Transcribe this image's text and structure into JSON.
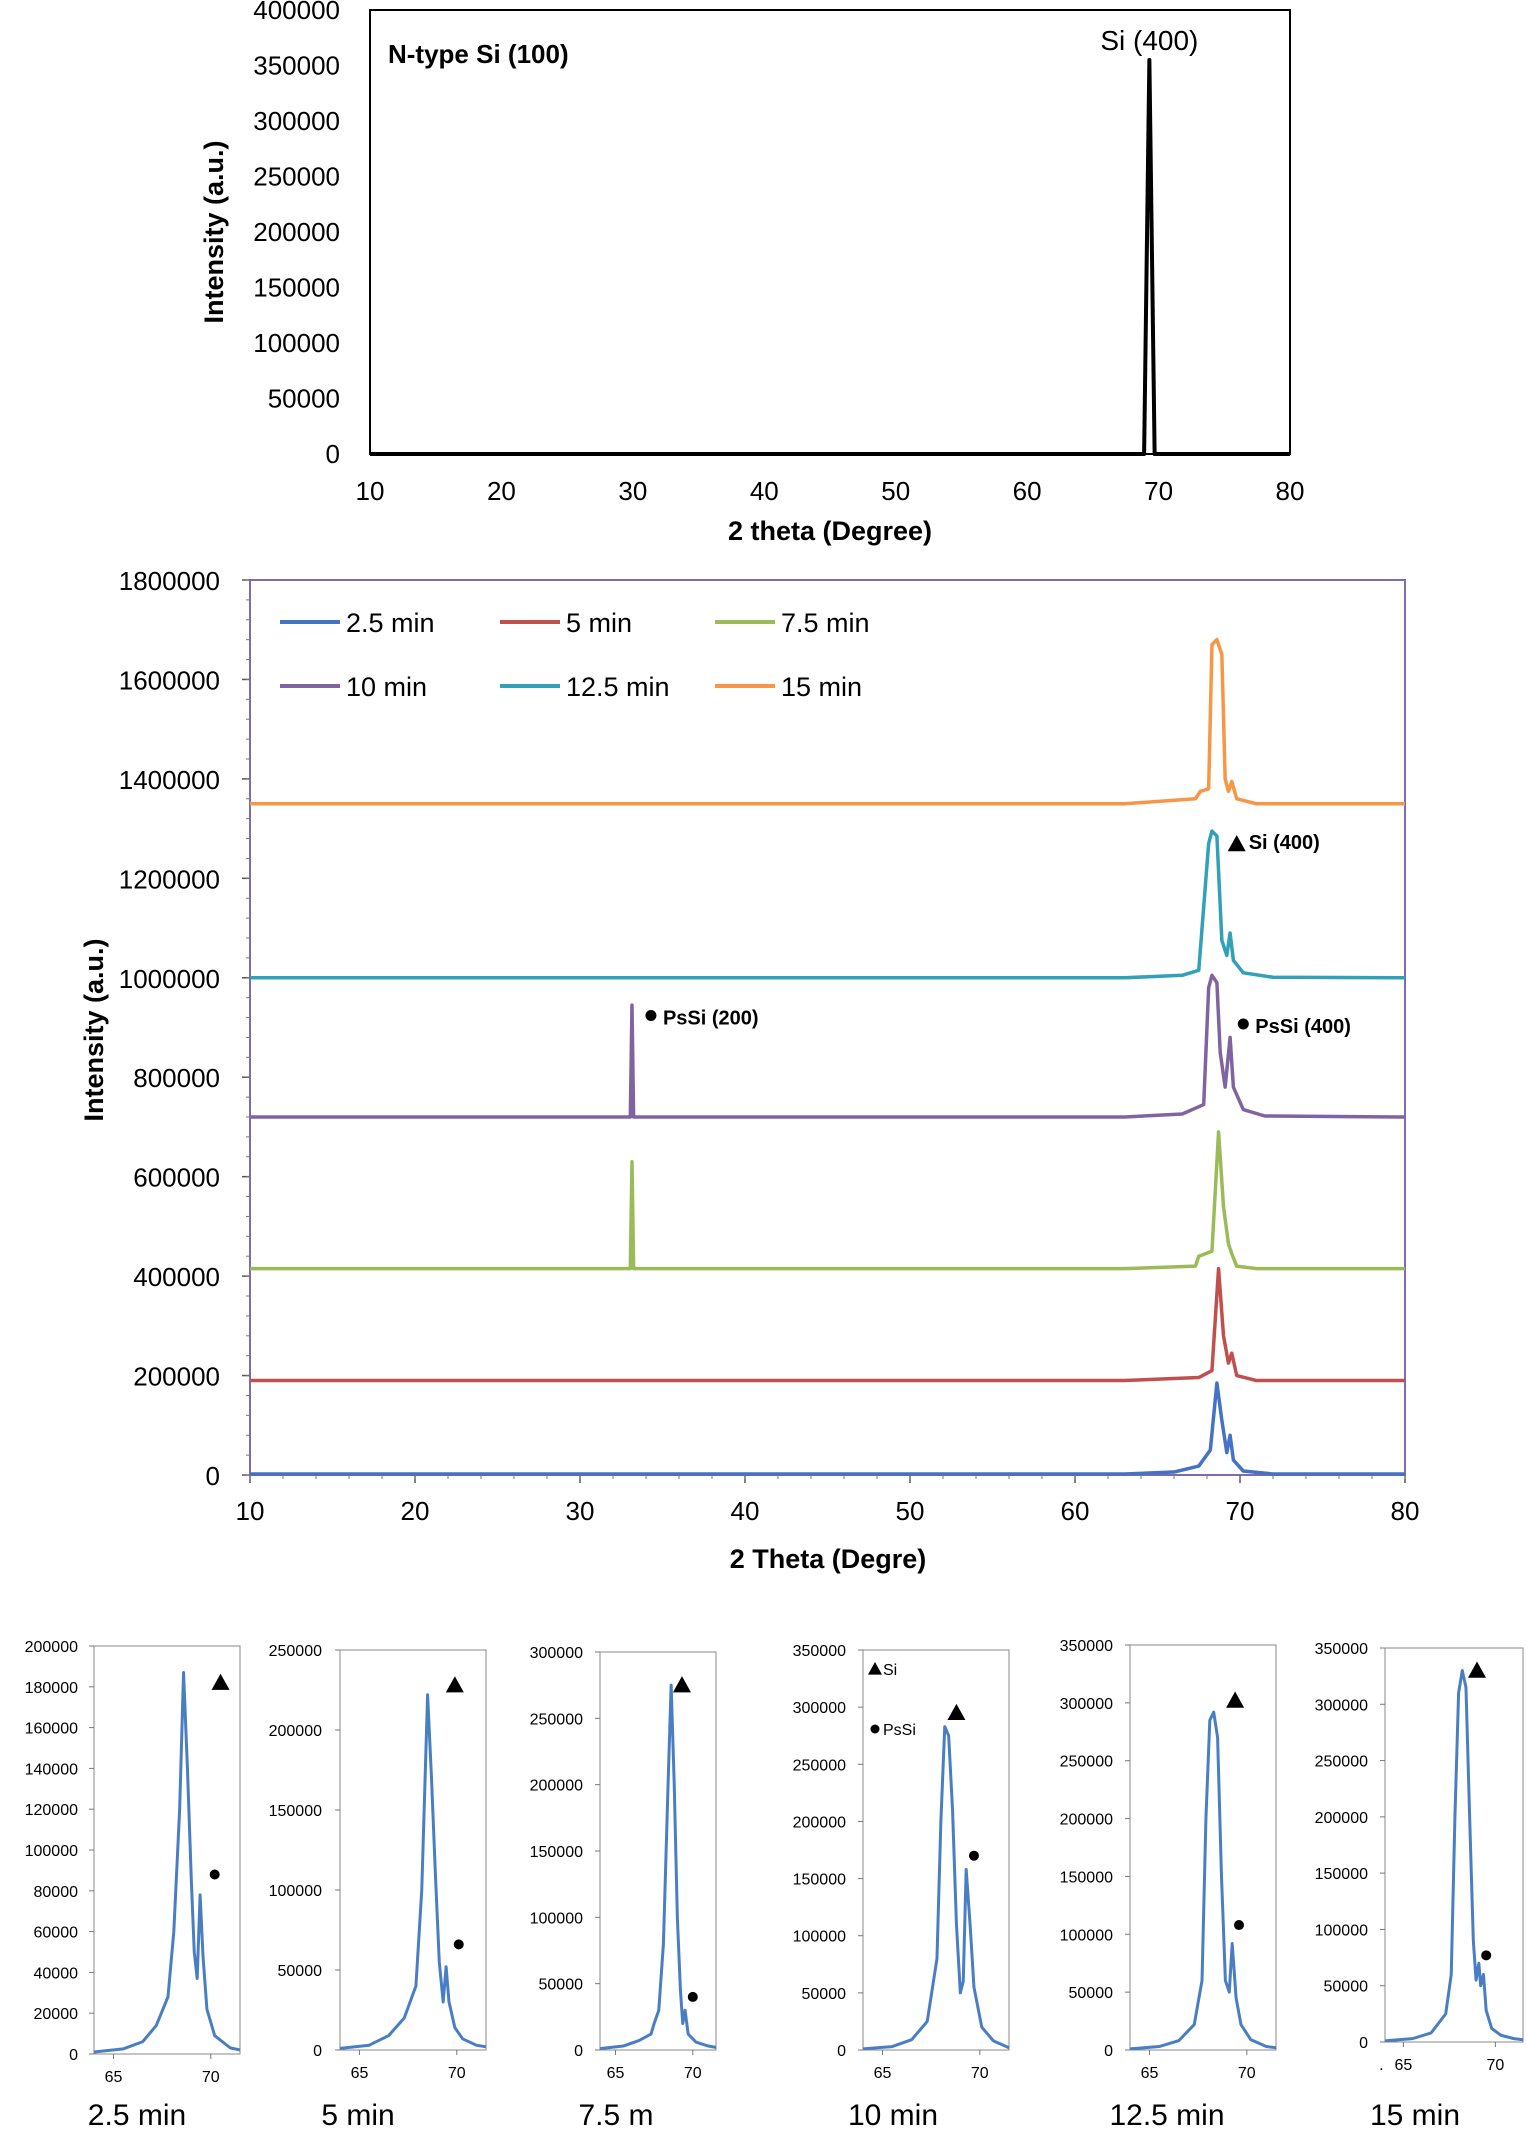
{
  "chart_data": [
    {
      "id": "top",
      "type": "line",
      "title": "N-type Si (100)",
      "xlabel": "2 theta (Degree)",
      "ylabel": "Intensity (a.u.)",
      "xlim": [
        10,
        80
      ],
      "ylim": [
        0,
        400000
      ],
      "xticks": [
        10,
        20,
        30,
        40,
        50,
        60,
        70,
        80
      ],
      "yticks": [
        0,
        50000,
        100000,
        150000,
        200000,
        250000,
        300000,
        350000,
        400000
      ],
      "series": [
        {
          "name": "N-type Si (100)",
          "color": "#000000",
          "points": [
            [
              10,
              0
            ],
            [
              68.9,
              0
            ],
            [
              69.3,
              355000
            ],
            [
              69.7,
              0
            ],
            [
              80,
              0
            ]
          ]
        }
      ],
      "annotations": [
        {
          "text": "Si (400)",
          "x": 69.3,
          "y": 375000
        }
      ]
    },
    {
      "id": "middle",
      "type": "line",
      "title": "",
      "xlabel": "2 Theta (Degre)",
      "ylabel": "Intensity (a.u.)",
      "xlim": [
        10,
        80
      ],
      "ylim": [
        0,
        1800000
      ],
      "xticks": [
        10,
        20,
        30,
        40,
        50,
        60,
        70,
        80
      ],
      "yticks": [
        0,
        200000,
        400000,
        600000,
        800000,
        1000000,
        1200000,
        1400000,
        1600000,
        1800000
      ],
      "legend": {
        "placement": "top-left",
        "columns": 3
      },
      "series": [
        {
          "name": "2.5 min",
          "color": "#4472C4",
          "points": [
            [
              10,
              2000
            ],
            [
              63,
              2000
            ],
            [
              66,
              6000
            ],
            [
              67.5,
              18000
            ],
            [
              68.2,
              50000
            ],
            [
              68.6,
              185000
            ],
            [
              68.9,
              110000
            ],
            [
              69.2,
              45000
            ],
            [
              69.4,
              80000
            ],
            [
              69.6,
              30000
            ],
            [
              70.2,
              8000
            ],
            [
              72,
              2000
            ],
            [
              80,
              2000
            ]
          ]
        },
        {
          "name": "5 min",
          "color": "#C0504D",
          "points": [
            [
              10,
              190000
            ],
            [
              63,
              190000
            ],
            [
              67.5,
              196000
            ],
            [
              68.3,
              210000
            ],
            [
              68.7,
              415000
            ],
            [
              69.0,
              280000
            ],
            [
              69.3,
              225000
            ],
            [
              69.5,
              245000
            ],
            [
              69.8,
              200000
            ],
            [
              71,
              190000
            ],
            [
              80,
              190000
            ]
          ]
        },
        {
          "name": "7.5 min",
          "color": "#9BBB59",
          "points": [
            [
              10,
              415000
            ],
            [
              33.05,
              415000
            ],
            [
              33.15,
              630000
            ],
            [
              33.25,
              415000
            ],
            [
              63,
              415000
            ],
            [
              67.3,
              420000
            ],
            [
              67.5,
              440000
            ],
            [
              68.3,
              450000
            ],
            [
              68.7,
              690000
            ],
            [
              69.0,
              540000
            ],
            [
              69.3,
              465000
            ],
            [
              69.5,
              445000
            ],
            [
              69.8,
              420000
            ],
            [
              71,
              415000
            ],
            [
              80,
              415000
            ]
          ]
        },
        {
          "name": "10 min",
          "color": "#8064A2",
          "points": [
            [
              10,
              720000
            ],
            [
              33.05,
              720000
            ],
            [
              33.15,
              945000
            ],
            [
              33.25,
              720000
            ],
            [
              63,
              720000
            ],
            [
              66.5,
              726000
            ],
            [
              67.8,
              745000
            ],
            [
              68.1,
              980000
            ],
            [
              68.3,
              1005000
            ],
            [
              68.6,
              990000
            ],
            [
              68.8,
              850000
            ],
            [
              69.1,
              780000
            ],
            [
              69.4,
              880000
            ],
            [
              69.6,
              780000
            ],
            [
              70.2,
              735000
            ],
            [
              71.5,
              722000
            ],
            [
              80,
              720000
            ]
          ]
        },
        {
          "name": "12.5 min",
          "color": "#31A0B8",
          "points": [
            [
              10,
              1000000
            ],
            [
              63,
              1000000
            ],
            [
              66.5,
              1005000
            ],
            [
              67.5,
              1015000
            ],
            [
              68.1,
              1270000
            ],
            [
              68.3,
              1295000
            ],
            [
              68.6,
              1285000
            ],
            [
              68.9,
              1075000
            ],
            [
              69.2,
              1045000
            ],
            [
              69.4,
              1090000
            ],
            [
              69.6,
              1035000
            ],
            [
              70.2,
              1010000
            ],
            [
              72,
              1001000
            ],
            [
              80,
              1000000
            ]
          ]
        },
        {
          "name": "15 min",
          "color": "#F79646",
          "points": [
            [
              10,
              1350000
            ],
            [
              63,
              1350000
            ],
            [
              67.3,
              1360000
            ],
            [
              67.6,
              1375000
            ],
            [
              68.1,
              1380000
            ],
            [
              68.3,
              1670000
            ],
            [
              68.6,
              1680000
            ],
            [
              68.9,
              1650000
            ],
            [
              69.1,
              1400000
            ],
            [
              69.3,
              1375000
            ],
            [
              69.5,
              1395000
            ],
            [
              69.8,
              1360000
            ],
            [
              71,
              1350000
            ],
            [
              80,
              1350000
            ]
          ]
        }
      ],
      "annotations": [
        {
          "marker": "triangle",
          "text": "Si (400)",
          "x": 69.8,
          "y": 1265000
        },
        {
          "marker": "circle",
          "text": "PsSi (200)",
          "x": 34.3,
          "y": 912000
        },
        {
          "marker": "circle",
          "text": "PsSi (400)",
          "x": 70.2,
          "y": 895000
        }
      ]
    },
    {
      "id": "inset-1",
      "type": "line",
      "caption": "2.5 min",
      "xlim": [
        64,
        71.5
      ],
      "xticks": [
        65,
        70
      ],
      "ylim": [
        0,
        200000
      ],
      "yticks": [
        0,
        20000,
        40000,
        60000,
        80000,
        100000,
        120000,
        140000,
        160000,
        180000,
        200000
      ],
      "color": "#4A7EC2",
      "points": [
        [
          64,
          1000
        ],
        [
          65.5,
          2500
        ],
        [
          66.5,
          6000
        ],
        [
          67.2,
          14000
        ],
        [
          67.8,
          28000
        ],
        [
          68.1,
          60000
        ],
        [
          68.4,
          120000
        ],
        [
          68.6,
          187000
        ],
        [
          68.8,
          140000
        ],
        [
          69.0,
          85000
        ],
        [
          69.15,
          50000
        ],
        [
          69.3,
          37000
        ],
        [
          69.45,
          78000
        ],
        [
          69.6,
          48000
        ],
        [
          69.8,
          22000
        ],
        [
          70.2,
          9000
        ],
        [
          71,
          3000
        ],
        [
          71.5,
          2000
        ]
      ],
      "markers": [
        {
          "type": "triangle",
          "x": 70.5,
          "y": 182000
        },
        {
          "type": "circle",
          "x": 70.2,
          "y": 88000
        }
      ]
    },
    {
      "id": "inset-2",
      "type": "line",
      "caption": "5 min",
      "xlim": [
        64,
        71.5
      ],
      "xticks": [
        65,
        70
      ],
      "ylim": [
        0,
        250000
      ],
      "yticks": [
        0,
        50000,
        100000,
        150000,
        200000,
        250000
      ],
      "color": "#4A7EC2",
      "points": [
        [
          64,
          1000
        ],
        [
          65.5,
          3000
        ],
        [
          66.5,
          9000
        ],
        [
          67.3,
          20000
        ],
        [
          67.9,
          40000
        ],
        [
          68.2,
          100000
        ],
        [
          68.5,
          222000
        ],
        [
          68.7,
          170000
        ],
        [
          68.9,
          110000
        ],
        [
          69.1,
          55000
        ],
        [
          69.3,
          30000
        ],
        [
          69.45,
          52000
        ],
        [
          69.6,
          30000
        ],
        [
          69.9,
          14000
        ],
        [
          70.3,
          7000
        ],
        [
          71,
          3000
        ],
        [
          71.5,
          2000
        ]
      ],
      "markers": [
        {
          "type": "triangle",
          "x": 69.9,
          "y": 228000
        },
        {
          "type": "circle",
          "x": 70.1,
          "y": 66000
        }
      ]
    },
    {
      "id": "inset-3",
      "type": "line",
      "caption": "7.5 m",
      "xlim": [
        64,
        71.5
      ],
      "xticks": [
        65,
        70
      ],
      "ylim": [
        0,
        300000
      ],
      "yticks": [
        0,
        50000,
        100000,
        150000,
        200000,
        250000,
        300000
      ],
      "color": "#4A7EC2",
      "points": [
        [
          64,
          1000
        ],
        [
          65.5,
          3000
        ],
        [
          66.5,
          7000
        ],
        [
          67.3,
          12000
        ],
        [
          67.5,
          20000
        ],
        [
          67.8,
          30000
        ],
        [
          68.1,
          80000
        ],
        [
          68.4,
          200000
        ],
        [
          68.6,
          275000
        ],
        [
          68.8,
          200000
        ],
        [
          69.0,
          100000
        ],
        [
          69.2,
          45000
        ],
        [
          69.35,
          20000
        ],
        [
          69.5,
          30000
        ],
        [
          69.7,
          12000
        ],
        [
          70.2,
          6000
        ],
        [
          71,
          3000
        ],
        [
          71.5,
          2000
        ]
      ],
      "markers": [
        {
          "type": "triangle",
          "x": 69.3,
          "y": 275000
        },
        {
          "type": "circle",
          "x": 70.0,
          "y": 40000
        }
      ]
    },
    {
      "id": "inset-4",
      "type": "line",
      "caption": "10 min",
      "xlim": [
        64,
        71.5
      ],
      "xticks": [
        65,
        70
      ],
      "ylim": [
        0,
        350000
      ],
      "yticks": [
        0,
        50000,
        100000,
        150000,
        200000,
        250000,
        300000,
        350000
      ],
      "color": "#4A7EC2",
      "points": [
        [
          64,
          1000
        ],
        [
          65.5,
          3000
        ],
        [
          66.5,
          9000
        ],
        [
          67.3,
          25000
        ],
        [
          67.8,
          80000
        ],
        [
          68.0,
          200000
        ],
        [
          68.2,
          283000
        ],
        [
          68.4,
          275000
        ],
        [
          68.6,
          210000
        ],
        [
          68.8,
          110000
        ],
        [
          69.0,
          50000
        ],
        [
          69.15,
          60000
        ],
        [
          69.3,
          158000
        ],
        [
          69.5,
          110000
        ],
        [
          69.7,
          55000
        ],
        [
          70.1,
          20000
        ],
        [
          70.7,
          8000
        ],
        [
          71.5,
          2000
        ]
      ],
      "markers": [
        {
          "type": "triangle",
          "x": 68.8,
          "y": 295000
        },
        {
          "type": "circle",
          "x": 69.7,
          "y": 170000
        }
      ],
      "legend": [
        {
          "marker": "triangle",
          "text": "Si"
        },
        {
          "marker": "circle",
          "text": "PsSi"
        }
      ]
    },
    {
      "id": "inset-5",
      "type": "line",
      "caption": "12.5 min",
      "xlim": [
        64,
        71.5
      ],
      "xticks": [
        65,
        70
      ],
      "ylim": [
        0,
        350000
      ],
      "yticks": [
        0,
        50000,
        100000,
        150000,
        200000,
        250000,
        300000,
        350000
      ],
      "color": "#4A7EC2",
      "points": [
        [
          64,
          1000
        ],
        [
          65.5,
          3000
        ],
        [
          66.5,
          8000
        ],
        [
          67.3,
          22000
        ],
        [
          67.7,
          60000
        ],
        [
          67.9,
          200000
        ],
        [
          68.1,
          285000
        ],
        [
          68.3,
          292000
        ],
        [
          68.5,
          270000
        ],
        [
          68.7,
          150000
        ],
        [
          68.9,
          60000
        ],
        [
          69.1,
          50000
        ],
        [
          69.25,
          92000
        ],
        [
          69.45,
          45000
        ],
        [
          69.7,
          22000
        ],
        [
          70.2,
          9000
        ],
        [
          71,
          3000
        ],
        [
          71.5,
          2000
        ]
      ],
      "markers": [
        {
          "type": "triangle",
          "x": 69.4,
          "y": 302000
        },
        {
          "type": "circle",
          "x": 69.6,
          "y": 108000
        }
      ]
    },
    {
      "id": "inset-6",
      "type": "line",
      "caption": "15 min",
      "xlim": [
        64,
        71.5
      ],
      "xticks": [
        65,
        70
      ],
      "ylim": [
        0,
        350000
      ],
      "yticks": [
        0,
        50000,
        100000,
        150000,
        200000,
        250000,
        300000,
        350000
      ],
      "color": "#4A7EC2",
      "points": [
        [
          64,
          1000
        ],
        [
          65.5,
          3000
        ],
        [
          66.5,
          8000
        ],
        [
          67.3,
          25000
        ],
        [
          67.6,
          60000
        ],
        [
          67.8,
          200000
        ],
        [
          68.0,
          310000
        ],
        [
          68.2,
          330000
        ],
        [
          68.4,
          315000
        ],
        [
          68.6,
          200000
        ],
        [
          68.8,
          90000
        ],
        [
          68.95,
          55000
        ],
        [
          69.1,
          70000
        ],
        [
          69.2,
          50000
        ],
        [
          69.35,
          60000
        ],
        [
          69.5,
          28000
        ],
        [
          69.8,
          12000
        ],
        [
          70.3,
          6000
        ],
        [
          71,
          3000
        ],
        [
          71.5,
          2000
        ]
      ],
      "markers": [
        {
          "type": "triangle",
          "x": 69.0,
          "y": 330000
        },
        {
          "type": "circle",
          "x": 69.5,
          "y": 77000
        }
      ],
      "xtick_prefix": "."
    }
  ]
}
